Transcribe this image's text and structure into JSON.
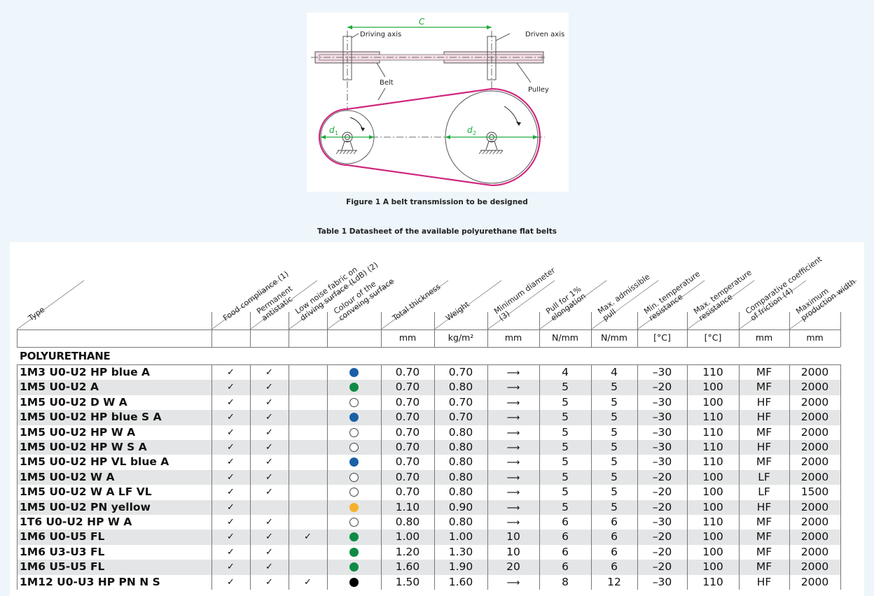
{
  "figure": {
    "label_c": "C",
    "driving_axis": "Driving axis",
    "driven_axis": "Driven axis",
    "belt": "Belt",
    "pulley": "Pulley",
    "d1": "d",
    "d1_sub": "1",
    "d2": "d",
    "d2_sub": "2",
    "caption": "Figure 1   A belt transmission to be designed"
  },
  "table_caption": "Table 1   Datasheet of the available polyurethane flat belts",
  "headers": [
    [
      "Type"
    ],
    [
      "Food compliance (1)"
    ],
    [
      "Permanent",
      "antistatic"
    ],
    [
      "Low noise fabric on",
      "driving surface (LdB) (2)"
    ],
    [
      "Colour of the",
      "conveing surface"
    ],
    [
      "Total thickness"
    ],
    [
      "Weight"
    ],
    [
      "Minimum diameter",
      "(3)"
    ],
    [
      "Pull for 1%",
      "elongation"
    ],
    [
      "Max. admissible",
      "pull"
    ],
    [
      "Min. temperature",
      "resistance"
    ],
    [
      "Max. temperature",
      "resistance"
    ],
    [
      "Comparative coefficient",
      "of friction (4)"
    ],
    [
      "Maximum",
      "production width"
    ]
  ],
  "units": [
    "",
    "",
    "",
    "",
    "",
    "mm",
    "kg/m²",
    "mm",
    "N/mm",
    "N/mm",
    "[°C]",
    "[°C]",
    "mm",
    "mm"
  ],
  "section": "POLYURETHANE",
  "check": "✓",
  "arrow": "⟶",
  "colors": {
    "blue": "#1b5fa6",
    "green": "#0f8a45",
    "white": "#ffffff",
    "yellow": "#f6b12b",
    "black": "#000000",
    "belt": "#d0267f",
    "belt_fill": "#f4dde5",
    "dim": "#1eaa3a"
  },
  "rows": [
    {
      "type": "1M3 U0-U2 HP blue A",
      "food": true,
      "anti": true,
      "ldb": false,
      "color": "blue",
      "thick": "0.70",
      "weight": "0.70",
      "mindia": "",
      "pull1": "4",
      "maxpull": "4",
      "mint": "–30",
      "maxt": "110",
      "cof": "MF",
      "width": "2000"
    },
    {
      "type": "1M5 U0-U2 A",
      "food": true,
      "anti": true,
      "ldb": false,
      "color": "green",
      "thick": "0.70",
      "weight": "0.80",
      "mindia": "",
      "pull1": "5",
      "maxpull": "5",
      "mint": "–20",
      "maxt": "100",
      "cof": "MF",
      "width": "2000"
    },
    {
      "type": "1M5 U0-U2 D W A",
      "food": true,
      "anti": true,
      "ldb": false,
      "color": "white",
      "thick": "0.70",
      "weight": "0.70",
      "mindia": "",
      "pull1": "5",
      "maxpull": "5",
      "mint": "–30",
      "maxt": "100",
      "cof": "HF",
      "width": "2000"
    },
    {
      "type": "1M5 U0-U2 HP blue S A",
      "food": true,
      "anti": true,
      "ldb": false,
      "color": "blue",
      "thick": "0.70",
      "weight": "0.70",
      "mindia": "",
      "pull1": "5",
      "maxpull": "5",
      "mint": "–30",
      "maxt": "110",
      "cof": "HF",
      "width": "2000"
    },
    {
      "type": "1M5 U0-U2 HP W A",
      "food": true,
      "anti": true,
      "ldb": false,
      "color": "white",
      "thick": "0.70",
      "weight": "0.80",
      "mindia": "",
      "pull1": "5",
      "maxpull": "5",
      "mint": "–30",
      "maxt": "110",
      "cof": "MF",
      "width": "2000"
    },
    {
      "type": "1M5 U0-U2 HP W S A",
      "food": true,
      "anti": true,
      "ldb": false,
      "color": "white",
      "thick": "0.70",
      "weight": "0.80",
      "mindia": "",
      "pull1": "5",
      "maxpull": "5",
      "mint": "–30",
      "maxt": "110",
      "cof": "HF",
      "width": "2000"
    },
    {
      "type": "1M5 U0-U2 HP VL blue A",
      "food": true,
      "anti": true,
      "ldb": false,
      "color": "blue",
      "thick": "0.70",
      "weight": "0.80",
      "mindia": "",
      "pull1": "5",
      "maxpull": "5",
      "mint": "–30",
      "maxt": "110",
      "cof": "MF",
      "width": "2000"
    },
    {
      "type": "1M5 U0-U2 W A",
      "food": true,
      "anti": true,
      "ldb": false,
      "color": "white",
      "thick": "0.70",
      "weight": "0.80",
      "mindia": "",
      "pull1": "5",
      "maxpull": "5",
      "mint": "–20",
      "maxt": "100",
      "cof": "LF",
      "width": "2000"
    },
    {
      "type": "1M5 U0-U2 W A LF VL",
      "food": true,
      "anti": true,
      "ldb": false,
      "color": "white",
      "thick": "0.70",
      "weight": "0.80",
      "mindia": "",
      "pull1": "5",
      "maxpull": "5",
      "mint": "–20",
      "maxt": "100",
      "cof": "LF",
      "width": "1500"
    },
    {
      "type": "1M5 U0-U2 PN yellow",
      "food": true,
      "anti": false,
      "ldb": false,
      "color": "yellow",
      "thick": "1.10",
      "weight": "0.90",
      "mindia": "",
      "pull1": "5",
      "maxpull": "5",
      "mint": "–20",
      "maxt": "100",
      "cof": "HF",
      "width": "2000"
    },
    {
      "type": "1T6 U0-U2 HP W A",
      "food": true,
      "anti": true,
      "ldb": false,
      "color": "white",
      "thick": "0.80",
      "weight": "0.80",
      "mindia": "",
      "pull1": "6",
      "maxpull": "6",
      "mint": "–30",
      "maxt": "110",
      "cof": "MF",
      "width": "2000"
    },
    {
      "type": "1M6 U0-U5 FL",
      "food": true,
      "anti": true,
      "ldb": true,
      "color": "green",
      "thick": "1.00",
      "weight": "1.00",
      "mindia": "10",
      "pull1": "6",
      "maxpull": "6",
      "mint": "–20",
      "maxt": "100",
      "cof": "MF",
      "width": "2000"
    },
    {
      "type": "1M6 U3-U3 FL",
      "food": true,
      "anti": true,
      "ldb": false,
      "color": "green",
      "thick": "1.20",
      "weight": "1.30",
      "mindia": "10",
      "pull1": "6",
      "maxpull": "6",
      "mint": "–20",
      "maxt": "100",
      "cof": "MF",
      "width": "2000"
    },
    {
      "type": "1M6 U5-U5 FL",
      "food": true,
      "anti": true,
      "ldb": false,
      "color": "green",
      "thick": "1.60",
      "weight": "1.90",
      "mindia": "20",
      "pull1": "6",
      "maxpull": "6",
      "mint": "–20",
      "maxt": "100",
      "cof": "MF",
      "width": "2000"
    },
    {
      "type": "1M12 U0-U3 HP PN N S",
      "food": true,
      "anti": true,
      "ldb": true,
      "color": "black",
      "thick": "1.50",
      "weight": "1.60",
      "mindia": "",
      "pull1": "8",
      "maxpull": "12",
      "mint": "–30",
      "maxt": "110",
      "cof": "HF",
      "width": "2000"
    }
  ]
}
